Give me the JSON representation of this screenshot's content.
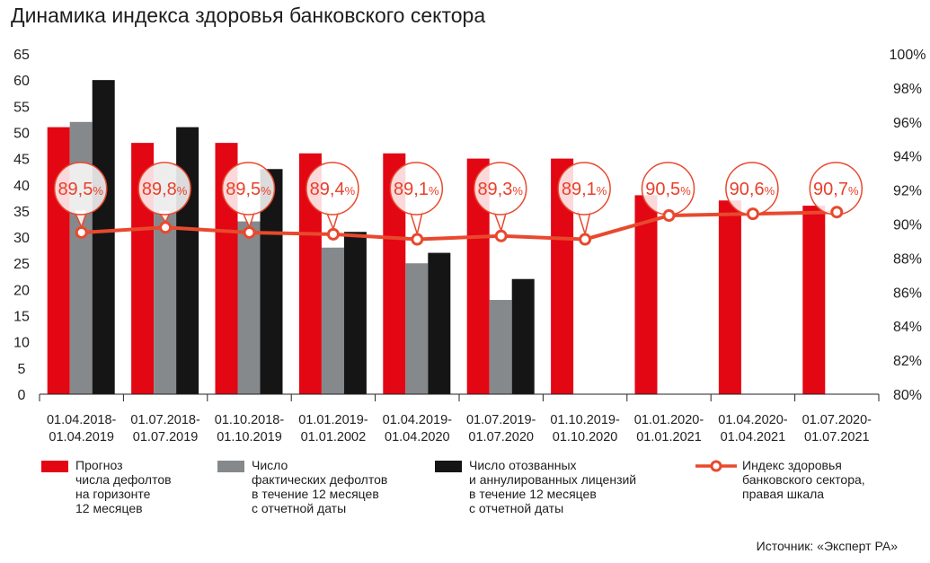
{
  "chart_data": {
    "type": "bar",
    "title": "Динамика индекса здоровья банковского сектора",
    "categories": [
      [
        "01.04.2018-",
        "01.04.2019"
      ],
      [
        "01.07.2018-",
        "01.07.2019"
      ],
      [
        "01.10.2018-",
        "01.10.2019"
      ],
      [
        "01.01.2019-",
        "01.01.2002"
      ],
      [
        "01.04.2019-",
        "01.04.2020"
      ],
      [
        "01.07.2019-",
        "01.07.2020"
      ],
      [
        "01.10.2019-",
        "01.10.2020"
      ],
      [
        "01.01.2020-",
        "01.01.2021"
      ],
      [
        "01.04.2020-",
        "01.04.2021"
      ],
      [
        "01.07.2020-",
        "01.07.2021"
      ]
    ],
    "left_axis": {
      "min": 0,
      "max": 65,
      "ticks": [
        "0",
        "5",
        "10",
        "15",
        "20",
        "25",
        "30",
        "35",
        "40",
        "45",
        "50",
        "55",
        "60",
        "65"
      ]
    },
    "right_axis": {
      "min": 80,
      "max": 100,
      "ticks": [
        "80%",
        "82%",
        "84%",
        "86%",
        "88%",
        "90%",
        "92%",
        "94%",
        "96%",
        "98%",
        "100%"
      ]
    },
    "grid": false,
    "series": [
      {
        "name": "Прогноз\nчисла дефолтов\nна горизонте\n12 месяцев",
        "kind": "bar",
        "color": "#e30613",
        "values": [
          51,
          48,
          48,
          46,
          46,
          45,
          45,
          38,
          37,
          36
        ]
      },
      {
        "name": "Число\nфактических дефолтов\nв течение 12 месяцев\nс отчетной даты",
        "kind": "bar",
        "color": "#86898c",
        "values": [
          52,
          44,
          33,
          28,
          25,
          18,
          null,
          null,
          null,
          null
        ]
      },
      {
        "name": "Число отозванных\nи аннулированных лицензий\nв течение 12 месяцев\nс отчетной даты",
        "kind": "bar",
        "color": "#151515",
        "values": [
          60,
          51,
          43,
          31,
          27,
          22,
          null,
          null,
          null,
          null
        ]
      },
      {
        "name": "Индекс здоровья\nбанковского сектора,\nправая шкала",
        "kind": "line",
        "axis": "right",
        "color": "#e8492e",
        "values": [
          89.5,
          89.8,
          89.5,
          89.4,
          89.1,
          89.3,
          89.1,
          90.5,
          90.6,
          90.7
        ],
        "labels": [
          [
            "89,5",
            "%"
          ],
          [
            "89,8",
            "%"
          ],
          [
            "89,5",
            "%"
          ],
          [
            "89,4",
            "%"
          ],
          [
            "89,1",
            "%"
          ],
          [
            "89,3",
            "%"
          ],
          [
            "89,1",
            "%"
          ],
          [
            "90,5",
            "%"
          ],
          [
            "90,6",
            "%"
          ],
          [
            "90,7",
            "%"
          ]
        ]
      }
    ]
  },
  "source": "Источник: «Эксперт РА»"
}
